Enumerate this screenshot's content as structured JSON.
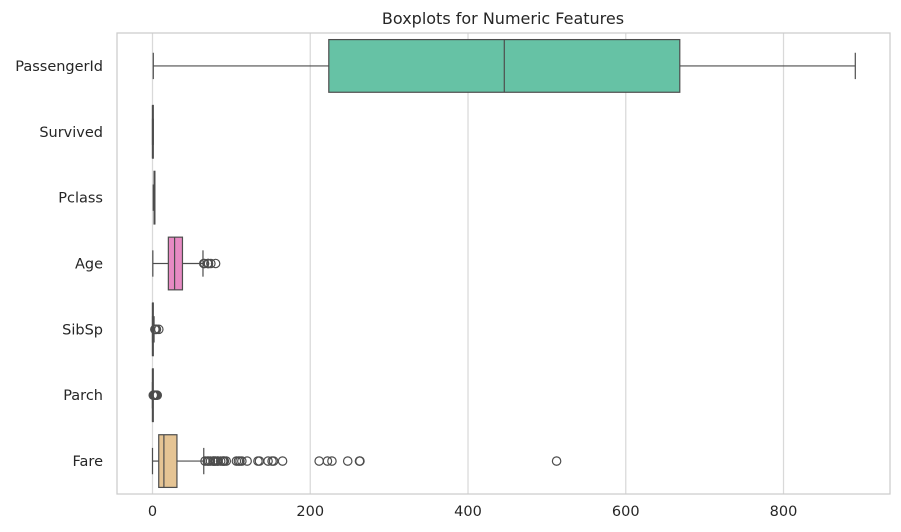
{
  "chart_data": {
    "type": "boxplot",
    "orientation": "horizontal",
    "title": "Boxplots for Numeric Features",
    "xlabel": "",
    "ylabel": "",
    "xlim": [
      -45,
      935
    ],
    "xticks": [
      0,
      200,
      400,
      600,
      800
    ],
    "grid": "vertical",
    "series": [
      {
        "name": "PassengerId",
        "color": "#66c2a5",
        "min": 1,
        "q1": 223.5,
        "median": 446,
        "q3": 668.5,
        "max": 891,
        "outliers": []
      },
      {
        "name": "Survived",
        "color": "#fc8d62",
        "min": 0,
        "q1": 0,
        "median": 0,
        "q3": 1,
        "max": 1,
        "outliers": []
      },
      {
        "name": "Pclass",
        "color": "#8da0cb",
        "min": 1,
        "q1": 2,
        "median": 3,
        "q3": 3,
        "max": 3,
        "outliers": []
      },
      {
        "name": "Age",
        "color": "#e78ac3",
        "min": 0.42,
        "q1": 20.1,
        "median": 28,
        "q3": 38,
        "max": 64,
        "outliers": [
          65,
          66,
          70,
          70.5,
          71,
          74,
          80
        ]
      },
      {
        "name": "SibSp",
        "color": "#a6d854",
        "min": 0,
        "q1": 0,
        "median": 0,
        "q3": 1,
        "max": 2,
        "outliers": [
          3,
          4,
          5,
          8
        ]
      },
      {
        "name": "Parch",
        "color": "#ffd92f",
        "min": 0,
        "q1": 0,
        "median": 0,
        "q3": 0,
        "max": 0,
        "outliers": [
          1,
          2,
          3,
          4,
          5,
          6
        ]
      },
      {
        "name": "Fare",
        "color": "#e5c494",
        "min": 0,
        "q1": 7.91,
        "median": 14.45,
        "q3": 31,
        "max": 65,
        "outliers": [
          66.6,
          69.5,
          71.3,
          73.5,
          76.7,
          77.3,
          78.9,
          80,
          82.2,
          83.2,
          86.5,
          89.1,
          90,
          91.1,
          93.5,
          106.4,
          108.9,
          110.9,
          113.3,
          120,
          133.7,
          135.6,
          146.5,
          151.6,
          153.5,
          164.9,
          211.3,
          221.8,
          227.5,
          247.5,
          262.4,
          263,
          512.3
        ]
      }
    ]
  }
}
